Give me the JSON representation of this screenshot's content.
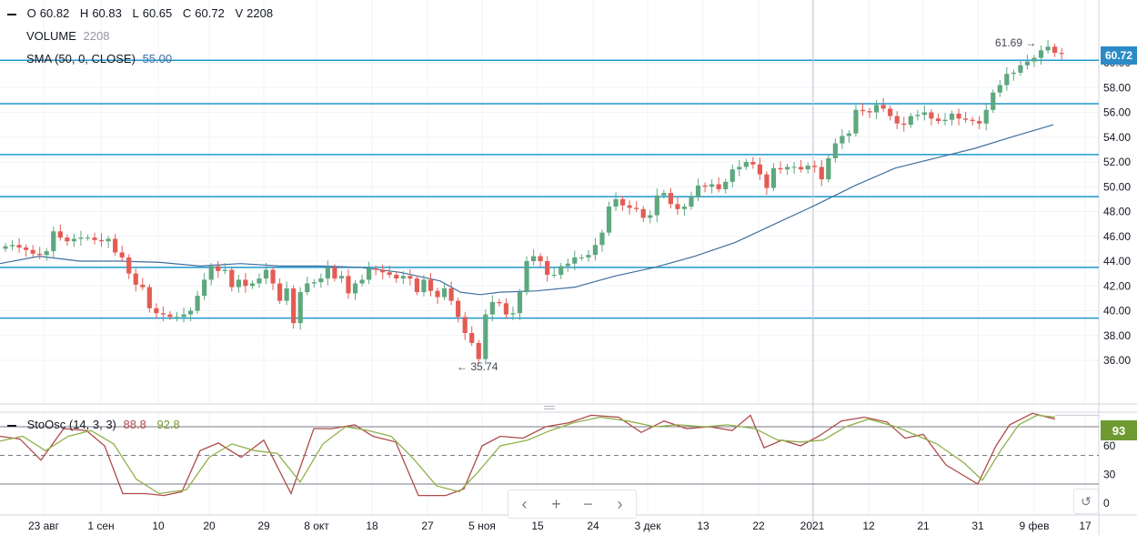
{
  "legend": {
    "o_label": "O",
    "open": "60.82",
    "h_label": "H",
    "high": "60.83",
    "l_label": "L",
    "low": "60.65",
    "c_label": "C",
    "close": "60.72",
    "v_label": "V",
    "volume": "2208",
    "volume_label": "VOLUME",
    "volume_value": "2208",
    "sma_label": "SMA (50, 0, CLOSE)",
    "sma_value": "55.00",
    "stoch_label": "StoOsc (14, 3, 3)",
    "stoch_k": "88.8",
    "stoch_d": "92.8"
  },
  "last_price_tag": "60.72",
  "stoch_tag": "93",
  "annotations": {
    "high": "61.69 →",
    "low": "← 35.74"
  },
  "colors": {
    "up": "#5ea87e",
    "down": "#e35c54",
    "sma": "#3f6fa0",
    "hline": "#1f97cc",
    "stoch_k": "#b04a4a",
    "stoch_d": "#8fb14a",
    "tag_blue": "#2c8bc7",
    "tag_green": "#6f9a32"
  },
  "controls": {
    "prev": "‹",
    "zoom_in": "+",
    "zoom_out": "−",
    "next": "›",
    "reset": "↺"
  },
  "chart_data": [
    {
      "type": "candlestick",
      "price_axis_ticks": [
        "36.00",
        "38.00",
        "40.00",
        "42.00",
        "44.00",
        "46.00",
        "48.00",
        "50.00",
        "52.00",
        "54.00",
        "56.00",
        "58.00",
        "60.00"
      ],
      "time_axis_ticks": [
        "23 авг",
        "1 сен",
        "10",
        "20",
        "29",
        "8 окт",
        "18",
        "27",
        "5 ноя",
        "15",
        "24",
        "3 дек",
        "13",
        "22",
        "2021",
        "12",
        "21",
        "31",
        "9 фев",
        "17"
      ],
      "ylim": [
        34,
        63
      ],
      "horizontal_levels": [
        39.4,
        43.5,
        49.2,
        52.6,
        56.7,
        60.2
      ],
      "marked_high": 61.69,
      "marked_low": 35.74,
      "close": [
        45.2,
        45.3,
        45.1,
        44.9,
        44.6,
        44.5,
        44.8,
        46.4,
        45.9,
        45.6,
        45.8,
        45.9,
        45.9,
        45.7,
        45.6,
        45.8,
        44.7,
        44.3,
        43.0,
        42.1,
        41.9,
        40.2,
        39.8,
        39.7,
        39.5,
        39.5,
        39.7,
        40.0,
        41.2,
        42.5,
        43.6,
        43.2,
        43.3,
        41.9,
        42.5,
        42.0,
        42.2,
        42.6,
        43.3,
        42.2,
        40.8,
        41.8,
        39.0,
        41.5,
        42.2,
        42.3,
        42.6,
        43.5,
        42.6,
        42.8,
        41.4,
        42.2,
        42.5,
        43.4,
        43.3,
        43.1,
        42.9,
        42.6,
        42.8,
        42.6,
        41.5,
        42.5,
        41.6,
        41.1,
        41.8,
        40.8,
        39.5,
        38.2,
        37.4,
        36.1,
        39.7,
        40.7,
        40.6,
        39.7,
        39.8,
        41.5,
        44.0,
        44.4,
        44.0,
        42.9,
        42.9,
        43.6,
        43.8,
        44.3,
        44.3,
        44.5,
        45.3,
        46.3,
        48.4,
        49.0,
        48.5,
        48.3,
        48.2,
        47.5,
        47.7,
        49.3,
        49.5,
        48.6,
        48.2,
        48.4,
        49.2,
        50.1,
        50.0,
        50.2,
        49.8,
        50.4,
        51.4,
        51.6,
        52.0,
        51.8,
        51.0,
        49.9,
        51.5,
        51.4,
        51.6,
        51.6,
        51.4,
        51.7,
        51.6,
        50.6,
        52.3,
        53.5,
        54.1,
        54.3,
        56.2,
        56.1,
        56.0,
        56.6,
        56.3,
        55.7,
        55.1,
        55.0,
        55.7,
        55.8,
        56.0,
        55.5,
        55.3,
        55.4,
        55.9,
        55.5,
        55.4,
        55.3,
        55.1,
        56.2,
        57.6,
        58.2,
        59.1,
        59.2,
        59.8,
        60.1,
        60.4,
        61.0,
        61.3,
        60.8,
        60.72
      ],
      "sma": [
        [
          0,
          43.8
        ],
        [
          43,
          44.4
        ],
        [
          88,
          44.0
        ],
        [
          132,
          44.0
        ],
        [
          176,
          43.9
        ],
        [
          220,
          43.6
        ],
        [
          264,
          43.8
        ],
        [
          308,
          43.6
        ],
        [
          352,
          43.6
        ],
        [
          396,
          43.5
        ],
        [
          440,
          43.1
        ],
        [
          484,
          42.4
        ],
        [
          506,
          41.5
        ],
        [
          528,
          41.3
        ],
        [
          550,
          41.5
        ],
        [
          590,
          41.6
        ],
        [
          632,
          41.9
        ],
        [
          676,
          42.8
        ],
        [
          720,
          43.5
        ],
        [
          764,
          44.4
        ],
        [
          808,
          45.5
        ],
        [
          852,
          47.0
        ],
        [
          896,
          48.5
        ],
        [
          940,
          50.1
        ],
        [
          984,
          51.5
        ],
        [
          1028,
          52.3
        ],
        [
          1072,
          53.1
        ],
        [
          1116,
          54.1
        ],
        [
          1158,
          55.0
        ]
      ]
    },
    {
      "type": "line",
      "title": "StoOsc (14, 3, 3)",
      "ylim": [
        0,
        100
      ],
      "axis_ticks": [
        "93",
        "60",
        "30",
        "0"
      ],
      "overbought": 80,
      "oversold": 20,
      "midline": 50,
      "series": [
        {
          "name": "%K",
          "values": [
            [
              0,
              70
            ],
            [
              22,
              67
            ],
            [
              45,
              45
            ],
            [
              70,
              78
            ],
            [
              95,
              76
            ],
            [
              115,
              60
            ],
            [
              135,
              10
            ],
            [
              160,
              10
            ],
            [
              180,
              8
            ],
            [
              200,
              12
            ],
            [
              220,
              55
            ],
            [
              240,
              63
            ],
            [
              265,
              48
            ],
            [
              290,
              66
            ],
            [
              320,
              10
            ],
            [
              345,
              78
            ],
            [
              365,
              78
            ],
            [
              390,
              82
            ],
            [
              410,
              70
            ],
            [
              435,
              64
            ],
            [
              460,
              8
            ],
            [
              490,
              8
            ],
            [
              510,
              15
            ],
            [
              530,
              60
            ],
            [
              550,
              70
            ],
            [
              575,
              68
            ],
            [
              600,
              80
            ],
            [
              625,
              84
            ],
            [
              650,
              92
            ],
            [
              680,
              90
            ],
            [
              705,
              74
            ],
            [
              730,
              86
            ],
            [
              755,
              78
            ],
            [
              780,
              80
            ],
            [
              805,
              76
            ],
            [
              825,
              92
            ],
            [
              840,
              58
            ],
            [
              860,
              66
            ],
            [
              880,
              60
            ],
            [
              900,
              70
            ],
            [
              925,
              86
            ],
            [
              950,
              90
            ],
            [
              975,
              85
            ],
            [
              995,
              68
            ],
            [
              1015,
              72
            ],
            [
              1040,
              40
            ],
            [
              1075,
              20
            ],
            [
              1095,
              60
            ],
            [
              1110,
              82
            ],
            [
              1135,
              94
            ],
            [
              1160,
              88
            ]
          ]
        },
        {
          "name": "%D",
          "values": [
            [
              0,
              65
            ],
            [
              25,
              70
            ],
            [
              50,
              55
            ],
            [
              75,
              70
            ],
            [
              100,
              76
            ],
            [
              125,
              62
            ],
            [
              150,
              25
            ],
            [
              175,
              10
            ],
            [
              205,
              14
            ],
            [
              230,
              48
            ],
            [
              255,
              62
            ],
            [
              280,
              55
            ],
            [
              305,
              52
            ],
            [
              330,
              22
            ],
            [
              355,
              62
            ],
            [
              380,
              80
            ],
            [
              405,
              76
            ],
            [
              430,
              70
            ],
            [
              455,
              46
            ],
            [
              480,
              18
            ],
            [
              505,
              12
            ],
            [
              525,
              32
            ],
            [
              550,
              60
            ],
            [
              580,
              66
            ],
            [
              605,
              76
            ],
            [
              630,
              84
            ],
            [
              660,
              90
            ],
            [
              690,
              86
            ],
            [
              720,
              80
            ],
            [
              745,
              82
            ],
            [
              775,
              80
            ],
            [
              800,
              82
            ],
            [
              830,
              78
            ],
            [
              855,
              66
            ],
            [
              880,
              64
            ],
            [
              905,
              66
            ],
            [
              930,
              80
            ],
            [
              955,
              88
            ],
            [
              985,
              80
            ],
            [
              1010,
              70
            ],
            [
              1030,
              62
            ],
            [
              1060,
              42
            ],
            [
              1080,
              24
            ],
            [
              1100,
              55
            ],
            [
              1120,
              82
            ],
            [
              1140,
              92
            ],
            [
              1160,
              90
            ]
          ]
        }
      ]
    }
  ]
}
